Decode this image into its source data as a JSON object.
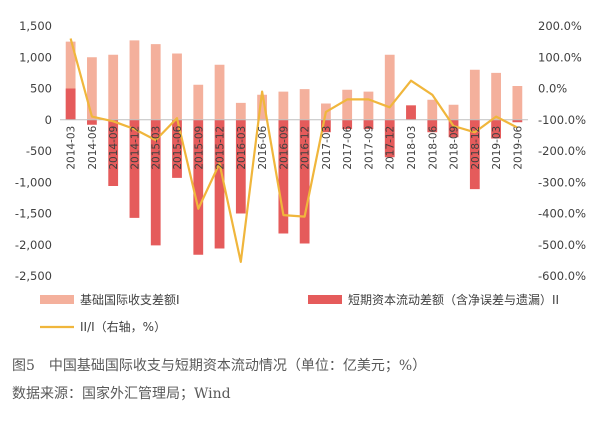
{
  "chart_data": {
    "type": "bar",
    "categories": [
      "2014-03",
      "2014-06",
      "2014-09",
      "2014-12",
      "2015-03",
      "2015-06",
      "2015-09",
      "2015-12",
      "2016-03",
      "2016-06",
      "2016-09",
      "2016-12",
      "2017-03",
      "2017-06",
      "2017-09",
      "2017-12",
      "2018-03",
      "2018-06",
      "2018-09",
      "2018-12",
      "2019-03",
      "2019-06"
    ],
    "category_tick_labels": [
      "2014-03",
      "2014-06",
      "2014-09",
      "2014-12",
      "2015-03",
      "2015-06",
      "2015-09",
      "2015-12",
      "2016-03",
      "2016-06",
      "2016-09",
      "2016-12",
      "2017-03",
      "2017-06",
      "2017-09",
      "2017-12",
      "2018-03",
      "2018-06",
      "2018-09",
      "2018-12",
      "2019-03",
      "2019-06"
    ],
    "series": [
      {
        "name": "基础国际收支差额I",
        "axis": "left",
        "kind": "bar",
        "color": "#f4b09c",
        "values": [
          1250,
          1000,
          1040,
          1270,
          1210,
          1060,
          560,
          880,
          270,
          400,
          450,
          490,
          260,
          480,
          450,
          1040,
          230,
          320,
          240,
          800,
          750,
          540
        ]
      },
      {
        "name": "短期资本流动差额（含净误差与遗漏）II",
        "axis": "left",
        "kind": "bar",
        "color": "#e55b5b",
        "values": [
          500,
          -80,
          -1060,
          -1570,
          -2010,
          -930,
          -2160,
          -2060,
          -1500,
          -10,
          -1820,
          -1980,
          -200,
          -150,
          -150,
          -600,
          230,
          -200,
          -280,
          -1110,
          -300,
          -40
        ]
      },
      {
        "name": "II/I（右轴，%）",
        "axis": "right",
        "kind": "line",
        "color": "#f0b63c",
        "values": [
          160,
          -90,
          -105,
          -130,
          -165,
          -95,
          -385,
          -240,
          -555,
          -10,
          -405,
          -410,
          -75,
          -35,
          -35,
          -60,
          25,
          -20,
          -120,
          -140,
          -90,
          -125
        ]
      }
    ],
    "left_axis": {
      "ticks": [
        "1,500",
        "1,000",
        "500",
        "0",
        "-500",
        "-1,000",
        "-1,500",
        "-2,000",
        "-2,500"
      ],
      "ylim": [
        -2500,
        1500
      ]
    },
    "right_axis": {
      "ticks": [
        "200.0%",
        "100.0%",
        "0.0%",
        "-100.0%",
        "-200.0%",
        "-300.0%",
        "-400.0%",
        "-500.0%",
        "-600.0%"
      ],
      "ylim": [
        -600,
        200
      ]
    },
    "legend": {
      "placement": "bottom",
      "items": [
        "基础国际收支差额I",
        "短期资本流动差额（含净误差与遗漏）II",
        "II/I（右轴，%）"
      ]
    },
    "grid": false
  },
  "caption": {
    "title": "图5　中国基础国际收支与短期资本流动情况（单位：亿美元；%）",
    "source": "数据来源：国家外汇管理局；Wind"
  }
}
